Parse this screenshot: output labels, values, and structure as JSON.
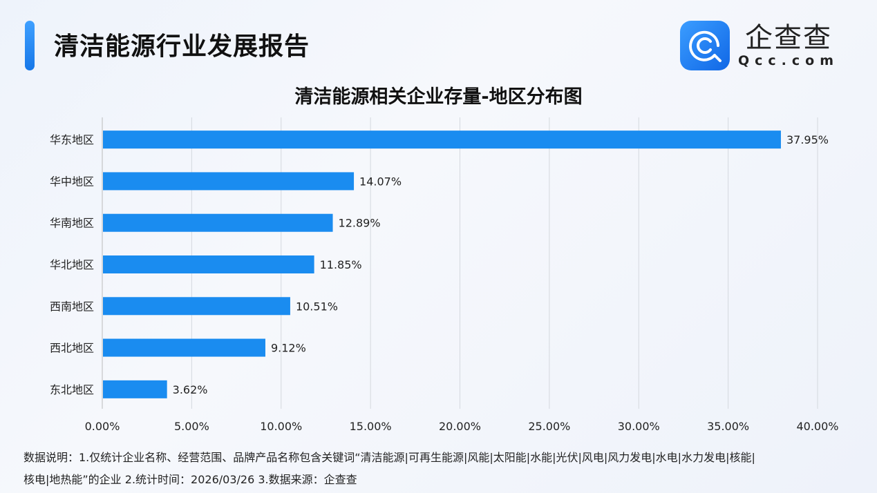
{
  "header": {
    "title": "清洁能源行业发展报告",
    "logo_cn": "企查查",
    "logo_en": "Qcc.com"
  },
  "colors": {
    "bar": "#1a8cf0",
    "accent": "#1677e8",
    "grid": "#d4d8de"
  },
  "chart_data": {
    "type": "bar",
    "orientation": "horizontal",
    "title": "清洁能源相关企业存量-地区分布图",
    "categories": [
      "华东地区",
      "华中地区",
      "华南地区",
      "华北地区",
      "西南地区",
      "西北地区",
      "东北地区"
    ],
    "values": [
      37.95,
      14.07,
      12.89,
      11.85,
      10.51,
      9.12,
      3.62
    ],
    "data_labels": [
      "37.95%",
      "14.07%",
      "12.89%",
      "11.85%",
      "10.51%",
      "9.12%",
      "3.62%"
    ],
    "xlim": [
      0,
      40
    ],
    "xticks": [
      0,
      5,
      10,
      15,
      20,
      25,
      30,
      35,
      40
    ],
    "xtick_labels": [
      "0.00%",
      "5.00%",
      "10.00%",
      "15.00%",
      "20.00%",
      "25.00%",
      "30.00%",
      "35.00%",
      "40.00%"
    ],
    "grid": "vertical",
    "xlabel": "",
    "ylabel": ""
  },
  "notes": {
    "line1": "数据说明：1.仅统计企业名称、经营范围、品牌产品名称包含关键词“清洁能源|可再生能源|风能|太阳能|水能|光伏|风电|风力发电|水电|水力发电|核能|",
    "line2": "核电|地热能”的企业  2.统计时间：2026/03/26   3.数据来源：企查查"
  }
}
